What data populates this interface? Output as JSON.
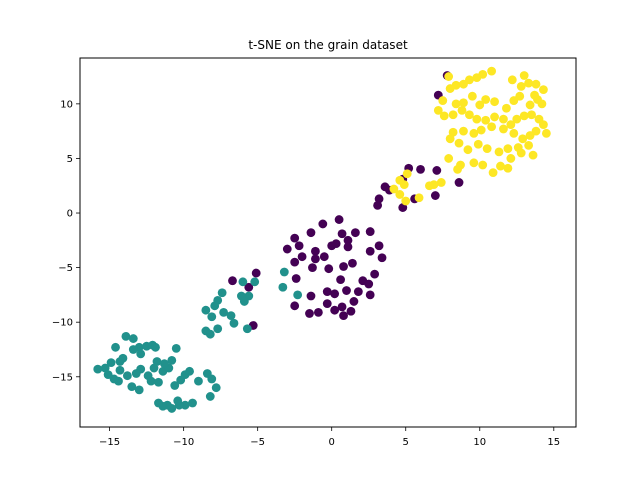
{
  "chart_data": {
    "type": "scatter",
    "title": "t-SNE on the grain dataset",
    "xlabel": "",
    "ylabel": "",
    "xlim": [
      -17,
      16.5
    ],
    "ylim": [
      -19.6,
      14.2
    ],
    "xticks": [
      -15,
      -10,
      -5,
      0,
      5,
      10,
      15
    ],
    "yticks": [
      -15,
      -10,
      -5,
      0,
      5,
      10
    ],
    "grid": false,
    "legend": "none",
    "series": [
      {
        "color": "#440154",
        "points": [
          [
            7.8,
            12.6
          ],
          [
            7.2,
            10.8
          ],
          [
            6.0,
            4.0
          ],
          [
            5.2,
            4.1
          ],
          [
            4.8,
            3.1
          ],
          [
            3.9,
            2.1
          ],
          [
            3.6,
            2.4
          ],
          [
            3.2,
            1.3
          ],
          [
            3.1,
            0.7
          ],
          [
            4.8,
            0.5
          ],
          [
            5.6,
            1.3
          ],
          [
            7.1,
            3.9
          ],
          [
            7.0,
            1.6
          ],
          [
            8.6,
            2.8
          ],
          [
            0.5,
            -0.6
          ],
          [
            -0.6,
            -1.0
          ],
          [
            -1.4,
            -1.8
          ],
          [
            -2.5,
            -2.3
          ],
          [
            -2.2,
            -3.0
          ],
          [
            -3.0,
            -3.3
          ],
          [
            -1.1,
            -3.5
          ],
          [
            0.0,
            -3.0
          ],
          [
            1.1,
            -2.5
          ],
          [
            0.7,
            -1.9
          ],
          [
            1.6,
            -1.8
          ],
          [
            1.1,
            -3.1
          ],
          [
            0.3,
            -2.8
          ],
          [
            -0.5,
            -4.0
          ],
          [
            -1.1,
            -4.2
          ],
          [
            -2.0,
            -4.0
          ],
          [
            -2.5,
            -4.5
          ],
          [
            -1.3,
            -5.0
          ],
          [
            -0.2,
            -5.1
          ],
          [
            0.8,
            -4.9
          ],
          [
            1.4,
            -4.6
          ],
          [
            2.6,
            -1.7
          ],
          [
            3.2,
            -3.0
          ],
          [
            2.6,
            -3.5
          ],
          [
            3.4,
            -4.1
          ],
          [
            2.9,
            -5.6
          ],
          [
            2.1,
            -6.2
          ],
          [
            0.6,
            -6.1
          ],
          [
            -0.3,
            -7.2
          ],
          [
            0.2,
            -7.4
          ],
          [
            1.0,
            -7.1
          ],
          [
            1.8,
            -7.2
          ],
          [
            2.5,
            -6.5
          ],
          [
            2.6,
            -7.5
          ],
          [
            1.5,
            -8.1
          ],
          [
            0.7,
            -8.6
          ],
          [
            0.2,
            -8.9
          ],
          [
            -0.3,
            -8.3
          ],
          [
            -2.5,
            -8.5
          ],
          [
            -1.5,
            -9.2
          ],
          [
            -0.9,
            -9.1
          ],
          [
            0.8,
            -9.4
          ],
          [
            1.3,
            -9.0
          ],
          [
            -1.4,
            -7.6
          ],
          [
            -2.4,
            -6.0
          ],
          [
            -6.7,
            -6.2
          ],
          [
            -5.1,
            -5.5
          ],
          [
            -5.6,
            -6.8
          ],
          [
            -5.3,
            -10.3
          ]
        ]
      },
      {
        "color": "#21918c",
        "points": [
          [
            -3.2,
            -5.4
          ],
          [
            -3.3,
            -6.8
          ],
          [
            -5.2,
            -6.3
          ],
          [
            -5.6,
            -7.6
          ],
          [
            -6.0,
            -6.3
          ],
          [
            -6.1,
            -7.6
          ],
          [
            -5.9,
            -8.1
          ],
          [
            -7.4,
            -7.3
          ],
          [
            -7.7,
            -8.0
          ],
          [
            -7.9,
            -8.5
          ],
          [
            -8.5,
            -8.9
          ],
          [
            -7.3,
            -9.1
          ],
          [
            -8.1,
            -9.5
          ],
          [
            -6.8,
            -9.4
          ],
          [
            -6.6,
            -10.1
          ],
          [
            -7.7,
            -10.6
          ],
          [
            -8.5,
            -10.8
          ],
          [
            -8.2,
            -11.1
          ],
          [
            -5.7,
            -10.6
          ],
          [
            -2.3,
            -7.5
          ],
          [
            -15.3,
            -14.2
          ],
          [
            -14.9,
            -13.7
          ],
          [
            -14.6,
            -12.3
          ],
          [
            -14.3,
            -13.6
          ],
          [
            -14.1,
            -13.3
          ],
          [
            -13.9,
            -11.3
          ],
          [
            -13.4,
            -11.5
          ],
          [
            -13.0,
            -12.3
          ],
          [
            -13.4,
            -12.5
          ],
          [
            -12.9,
            -12.9
          ],
          [
            -12.5,
            -12.2
          ],
          [
            -12.1,
            -12.1
          ],
          [
            -11.9,
            -12.3
          ],
          [
            -11.8,
            -13.6
          ],
          [
            -12.0,
            -14.2
          ],
          [
            -12.4,
            -14.9
          ],
          [
            -12.2,
            -15.4
          ],
          [
            -11.7,
            -15.5
          ],
          [
            -11.4,
            -14.5
          ],
          [
            -11.0,
            -14.2
          ],
          [
            -10.5,
            -12.4
          ],
          [
            -10.8,
            -13.5
          ],
          [
            -11.3,
            -13.8
          ],
          [
            -12.9,
            -14.3
          ],
          [
            -13.2,
            -14.7
          ],
          [
            -13.8,
            -14.9
          ],
          [
            -14.4,
            -15.4
          ],
          [
            -14.7,
            -15.2
          ],
          [
            -15.1,
            -14.8
          ],
          [
            -15.8,
            -14.3
          ],
          [
            -14.3,
            -14.4
          ],
          [
            -13.5,
            -15.9
          ],
          [
            -13.0,
            -16.2
          ],
          [
            -10.6,
            -15.8
          ],
          [
            -10.2,
            -15.3
          ],
          [
            -9.9,
            -14.8
          ],
          [
            -9.6,
            -14.5
          ],
          [
            -9.0,
            -15.4
          ],
          [
            -8.4,
            -14.7
          ],
          [
            -8.1,
            -15.2
          ],
          [
            -7.8,
            -16.0
          ],
          [
            -8.2,
            -16.8
          ],
          [
            -9.4,
            -17.4
          ],
          [
            -9.9,
            -17.6
          ],
          [
            -10.3,
            -17.6
          ],
          [
            -10.8,
            -17.9
          ],
          [
            -11.1,
            -17.6
          ],
          [
            -11.4,
            -17.7
          ],
          [
            -11.7,
            -17.4
          ],
          [
            -10.4,
            -17.2
          ]
        ]
      },
      {
        "color": "#fde725",
        "points": [
          [
            10.8,
            13.0
          ],
          [
            10.2,
            12.7
          ],
          [
            9.8,
            12.4
          ],
          [
            9.3,
            12.2
          ],
          [
            8.4,
            11.7
          ],
          [
            8.9,
            11.8
          ],
          [
            8.0,
            11.4
          ],
          [
            7.9,
            12.5
          ],
          [
            12.2,
            12.2
          ],
          [
            13.0,
            12.6
          ],
          [
            13.3,
            11.9
          ],
          [
            12.8,
            11.6
          ],
          [
            13.8,
            11.8
          ],
          [
            14.3,
            11.3
          ],
          [
            13.9,
            10.4
          ],
          [
            14.2,
            10.0
          ],
          [
            13.4,
            9.9
          ],
          [
            12.7,
            10.7
          ],
          [
            12.3,
            10.3
          ],
          [
            11.8,
            9.6
          ],
          [
            11.0,
            10.2
          ],
          [
            10.4,
            10.4
          ],
          [
            10.0,
            9.9
          ],
          [
            9.5,
            10.7
          ],
          [
            8.9,
            10.1
          ],
          [
            8.4,
            10.0
          ],
          [
            7.5,
            10.3
          ],
          [
            7.2,
            9.4
          ],
          [
            7.6,
            8.9
          ],
          [
            8.2,
            9.0
          ],
          [
            8.8,
            9.4
          ],
          [
            9.3,
            9.0
          ],
          [
            9.8,
            8.6
          ],
          [
            10.4,
            8.5
          ],
          [
            11.0,
            8.8
          ],
          [
            11.6,
            8.6
          ],
          [
            12.1,
            8.1
          ],
          [
            12.5,
            8.6
          ],
          [
            13.0,
            8.9
          ],
          [
            13.5,
            9.0
          ],
          [
            14.0,
            8.6
          ],
          [
            14.5,
            7.3
          ],
          [
            13.8,
            7.5
          ],
          [
            13.4,
            7.1
          ],
          [
            12.9,
            6.8
          ],
          [
            12.3,
            7.3
          ],
          [
            11.6,
            7.7
          ],
          [
            10.8,
            7.9
          ],
          [
            10.1,
            7.6
          ],
          [
            9.6,
            7.3
          ],
          [
            8.9,
            7.5
          ],
          [
            8.2,
            7.4
          ],
          [
            8.0,
            6.8
          ],
          [
            8.6,
            6.4
          ],
          [
            9.2,
            5.8
          ],
          [
            9.9,
            6.3
          ],
          [
            10.5,
            5.9
          ],
          [
            11.3,
            5.6
          ],
          [
            11.9,
            5.9
          ],
          [
            12.6,
            6.0
          ],
          [
            13.3,
            6.2
          ],
          [
            13.6,
            5.3
          ],
          [
            12.8,
            5.5
          ],
          [
            12.1,
            5.0
          ],
          [
            11.4,
            4.3
          ],
          [
            10.9,
            3.7
          ],
          [
            10.2,
            4.4
          ],
          [
            9.6,
            4.6
          ],
          [
            8.7,
            4.4
          ],
          [
            8.5,
            4.0
          ],
          [
            7.9,
            5.0
          ],
          [
            11.9,
            4.1
          ],
          [
            14.3,
            8.1
          ],
          [
            13.7,
            10.8
          ],
          [
            7.4,
            2.8
          ],
          [
            6.9,
            2.6
          ],
          [
            6.6,
            2.5
          ],
          [
            5.9,
            1.4
          ],
          [
            5.0,
            1.1
          ],
          [
            4.6,
            1.7
          ],
          [
            4.2,
            2.2
          ],
          [
            4.9,
            2.6
          ],
          [
            4.6,
            3.0
          ],
          [
            5.1,
            3.6
          ]
        ]
      }
    ]
  }
}
